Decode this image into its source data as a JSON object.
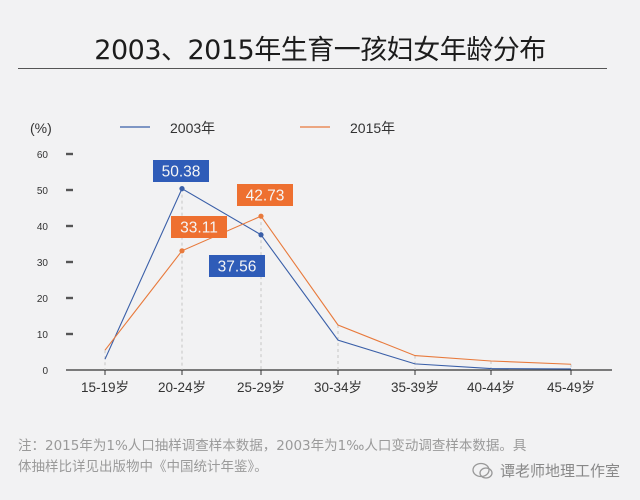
{
  "title": "2003、2015年生育一孩妇女年龄分布",
  "legend": {
    "unit": "(%)",
    "series": [
      {
        "name": "2003年",
        "color": "#3a5fa8"
      },
      {
        "name": "2015年",
        "color": "#e87a3c"
      }
    ]
  },
  "note": {
    "line1": "注：2015年为1%人口抽样调查样本数据，2003年为1‰人口变动调查样本数据。具",
    "line2": "体抽样比详见出版物中《中国统计年鉴》。"
  },
  "watermark": "谭老师地理工作室",
  "chart_data": {
    "type": "line",
    "title": "2003、2015年生育一孩妇女年龄分布",
    "xlabel": "",
    "ylabel": "(%)",
    "ylim": [
      0,
      60
    ],
    "yticks": [
      0,
      10,
      20,
      30,
      40,
      50,
      60
    ],
    "categories": [
      "15-19岁",
      "20-24岁",
      "25-29岁",
      "30-34岁",
      "35-39岁",
      "40-44岁",
      "45-49岁"
    ],
    "series": [
      {
        "name": "2003年",
        "color": "#3a5fa8",
        "values": [
          3.0,
          50.38,
          37.56,
          8.3,
          1.7,
          0.4,
          0.3
        ]
      },
      {
        "name": "2015年",
        "color": "#e87a3c",
        "values": [
          5.5,
          33.11,
          42.73,
          12.5,
          4.0,
          2.5,
          1.6
        ]
      }
    ],
    "data_labels": [
      {
        "series": "2003年",
        "category": "20-24岁",
        "value": "50.38"
      },
      {
        "series": "2003年",
        "category": "25-29岁",
        "value": "37.56"
      },
      {
        "series": "2015年",
        "category": "20-24岁",
        "value": "33.11"
      },
      {
        "series": "2015年",
        "category": "25-29岁",
        "value": "42.73"
      }
    ],
    "grid": false,
    "legend_position": "top"
  }
}
